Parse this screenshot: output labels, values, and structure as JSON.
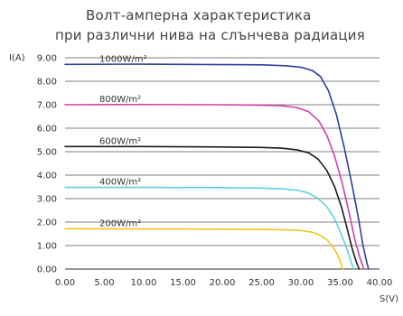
{
  "chart_data": {
    "type": "line",
    "title_lines": [
      "Волт-амперна характеристика",
      "при различни нива на слънчева радиация"
    ],
    "xlabel": "S(V)",
    "ylabel": "I(A)",
    "xlim": [
      0,
      40
    ],
    "ylim": [
      0,
      9
    ],
    "x_ticks": [
      "0.00",
      "5.00",
      "10.00",
      "15.00",
      "20.00",
      "25.00",
      "30.00",
      "35.00",
      "40.00"
    ],
    "y_ticks": [
      "0.00",
      "1.00",
      "2.00",
      "3.00",
      "4.00",
      "5.00",
      "6.00",
      "7.00",
      "8.00",
      "9.00"
    ],
    "grid": "horizontal",
    "series": [
      {
        "name": "1000W/m²",
        "color": "#2e3f9e",
        "points": [
          [
            0,
            8.72
          ],
          [
            10,
            8.73
          ],
          [
            20,
            8.71
          ],
          [
            25,
            8.7
          ],
          [
            28,
            8.66
          ],
          [
            30,
            8.6
          ],
          [
            31.5,
            8.45
          ],
          [
            32.5,
            8.2
          ],
          [
            33.5,
            7.6
          ],
          [
            34.5,
            6.6
          ],
          [
            35.5,
            5.2
          ],
          [
            36.5,
            3.6
          ],
          [
            37.3,
            2.2
          ],
          [
            37.9,
            1.0
          ],
          [
            38.3,
            0.4
          ],
          [
            38.6,
            0
          ]
        ]
      },
      {
        "name": "800W/m²",
        "color": "#d23fa8",
        "points": [
          [
            0,
            7.0
          ],
          [
            10,
            7.01
          ],
          [
            20,
            7.0
          ],
          [
            25,
            6.98
          ],
          [
            27.5,
            6.96
          ],
          [
            29.5,
            6.88
          ],
          [
            31,
            6.7
          ],
          [
            32.3,
            6.3
          ],
          [
            33.3,
            5.7
          ],
          [
            34.3,
            4.8
          ],
          [
            35.3,
            3.6
          ],
          [
            36.2,
            2.3
          ],
          [
            36.9,
            1.2
          ],
          [
            37.5,
            0.5
          ],
          [
            38.0,
            0
          ]
        ]
      },
      {
        "name": "600W/m²",
        "color": "#1a1a1a",
        "points": [
          [
            0,
            5.22
          ],
          [
            10,
            5.22
          ],
          [
            20,
            5.2
          ],
          [
            25,
            5.18
          ],
          [
            27.5,
            5.15
          ],
          [
            29.5,
            5.08
          ],
          [
            31,
            4.95
          ],
          [
            32.2,
            4.68
          ],
          [
            33.3,
            4.2
          ],
          [
            34.3,
            3.5
          ],
          [
            35.2,
            2.6
          ],
          [
            35.9,
            1.7
          ],
          [
            36.5,
            0.9
          ],
          [
            37.0,
            0.35
          ],
          [
            37.4,
            0
          ]
        ]
      },
      {
        "name": "400W/m²",
        "color": "#5ed0de",
        "points": [
          [
            0,
            3.48
          ],
          [
            10,
            3.48
          ],
          [
            20,
            3.47
          ],
          [
            25,
            3.45
          ],
          [
            27.5,
            3.42
          ],
          [
            29.5,
            3.36
          ],
          [
            30.8,
            3.26
          ],
          [
            32,
            3.05
          ],
          [
            33.2,
            2.7
          ],
          [
            34.2,
            2.2
          ],
          [
            35.0,
            1.6
          ],
          [
            35.7,
            1.0
          ],
          [
            36.2,
            0.5
          ],
          [
            36.7,
            0
          ]
        ]
      },
      {
        "name": "200W/m²",
        "color": "#f2c51a",
        "points": [
          [
            0,
            1.72
          ],
          [
            10,
            1.71
          ],
          [
            20,
            1.7
          ],
          [
            25,
            1.69
          ],
          [
            28,
            1.67
          ],
          [
            30,
            1.64
          ],
          [
            31.3,
            1.58
          ],
          [
            32.4,
            1.45
          ],
          [
            33.3,
            1.25
          ],
          [
            34.0,
            0.98
          ],
          [
            34.6,
            0.65
          ],
          [
            35.0,
            0.32
          ],
          [
            35.3,
            0
          ]
        ]
      }
    ]
  }
}
